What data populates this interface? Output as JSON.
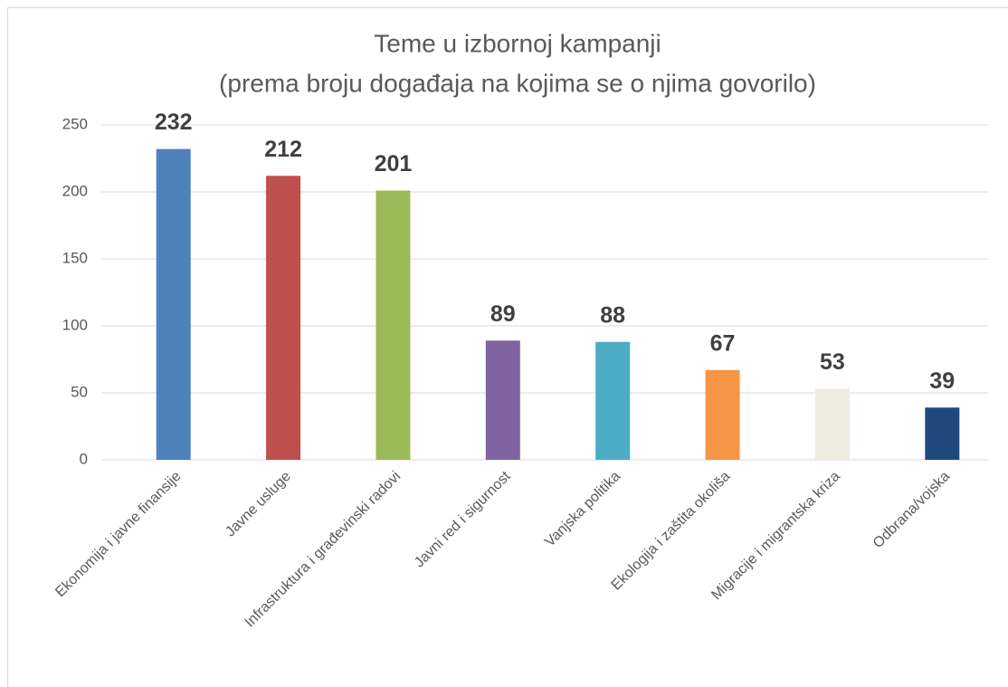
{
  "chart_data": {
    "type": "bar",
    "title": "Teme u izbornoj kampanji",
    "subtitle": "(prema broju događaja na kojima se o njima govorilo)",
    "categories": [
      "Ekonomija i javne finansije",
      "Javne usluge",
      "Infrastruktura i građevinski radovi",
      "Javni red i sigurnost",
      "Vanjska politika",
      "Ekologija i zaštita okoliša",
      "Migracije i migrantska kriza",
      "Odbrana/vojska"
    ],
    "values": [
      232,
      212,
      201,
      89,
      88,
      67,
      53,
      39
    ],
    "colors": [
      "#4f81bd",
      "#c0504d",
      "#9bbb59",
      "#8064a2",
      "#4bacc6",
      "#f79646",
      "#eeece1",
      "#1f497d"
    ],
    "ylim": [
      0,
      250
    ],
    "yticks": [
      0,
      50,
      100,
      150,
      200,
      250
    ],
    "grid": true
  }
}
